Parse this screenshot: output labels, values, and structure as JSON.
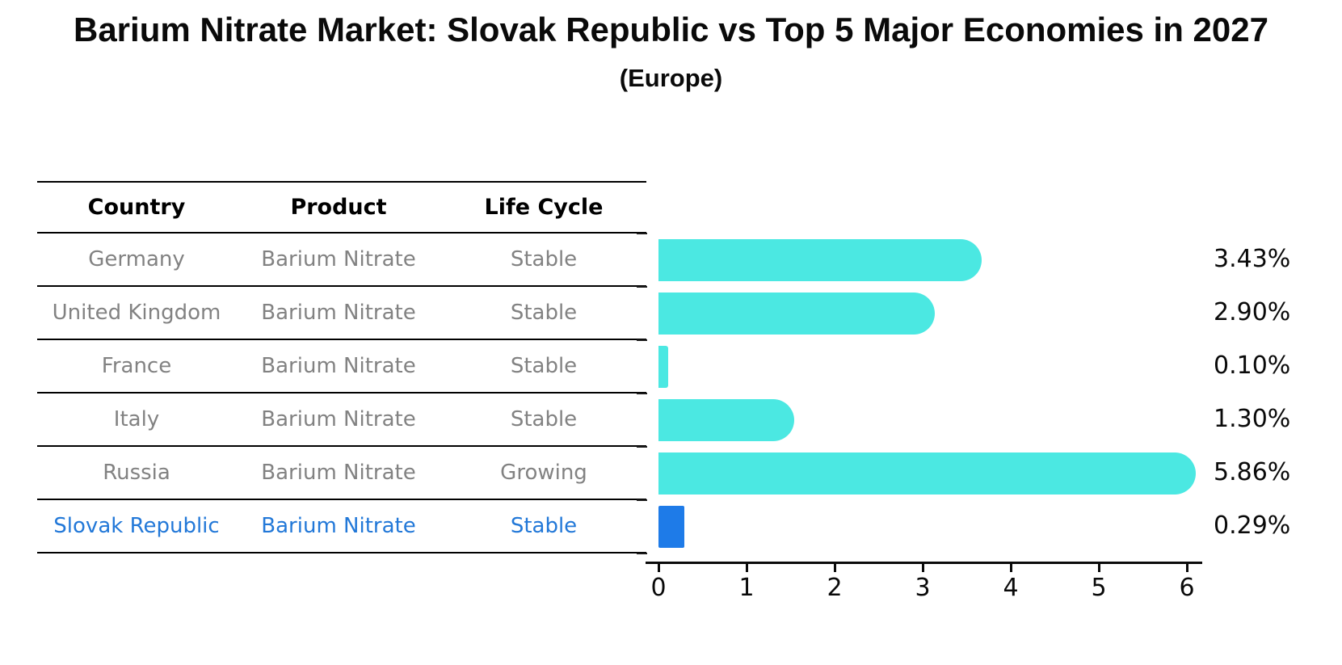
{
  "title": "Barium Nitrate Market: Slovak Republic vs Top 5 Major Economies in 2027",
  "subtitle": "(Europe)",
  "table": {
    "headers": [
      "Country",
      "Product",
      "Life Cycle"
    ],
    "rows": [
      {
        "country": "Germany",
        "product": "Barium Nitrate",
        "life_cycle": "Stable",
        "highlight": false
      },
      {
        "country": "United Kingdom",
        "product": "Barium Nitrate",
        "life_cycle": "Stable",
        "highlight": false
      },
      {
        "country": "France",
        "product": "Barium Nitrate",
        "life_cycle": "Stable",
        "highlight": false
      },
      {
        "country": "Italy",
        "product": "Barium Nitrate",
        "life_cycle": "Stable",
        "highlight": false
      },
      {
        "country": "Russia",
        "product": "Barium Nitrate",
        "life_cycle": "Growing",
        "highlight": false
      },
      {
        "country": "Slovak Republic",
        "product": "Barium Nitrate",
        "life_cycle": "Stable",
        "highlight": true
      }
    ]
  },
  "chart_data": {
    "type": "bar",
    "orientation": "horizontal",
    "title": "Barium Nitrate Market: Slovak Republic vs Top 5 Major Economies in 2027",
    "subtitle": "(Europe)",
    "categories": [
      "Germany",
      "United Kingdom",
      "France",
      "Italy",
      "Russia",
      "Slovak Republic"
    ],
    "values": [
      3.43,
      2.9,
      0.1,
      1.3,
      5.86,
      0.29
    ],
    "value_labels": [
      "3.43%",
      "2.90%",
      "0.10%",
      "1.30%",
      "5.86%",
      "0.29%"
    ],
    "xlim": [
      0,
      6
    ],
    "x_ticks": [
      "0",
      "1",
      "2",
      "3",
      "4",
      "5",
      "6"
    ],
    "grid": false,
    "legend": false,
    "highlight_index": 5,
    "colors": {
      "bar": "#4BE8E2",
      "highlight_bar": "#1E7BE8",
      "highlight_text": "#2278D8",
      "table_text": "#828282",
      "header_text": "#000000",
      "axis": "#0A0A0A"
    }
  }
}
